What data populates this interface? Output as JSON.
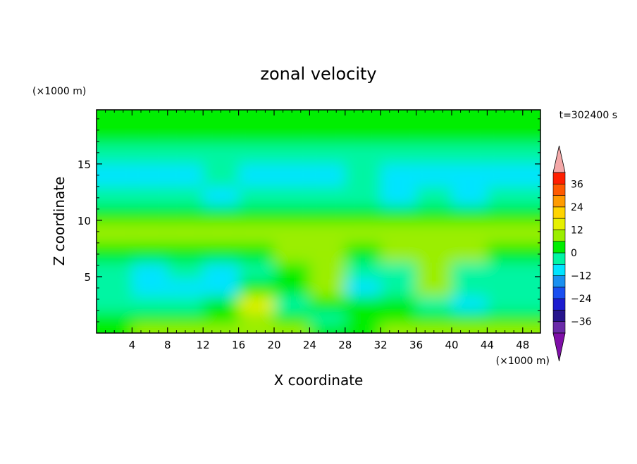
{
  "chart_data": {
    "type": "heatmap",
    "title": "zonal velocity",
    "xlabel": "X coordinate",
    "ylabel": "Z coordinate",
    "x_unit": "(×1000 m)",
    "y_unit": "(×1000 m)",
    "time_label": "t=302400 s",
    "xlim": [
      0,
      50
    ],
    "ylim": [
      0,
      19.8
    ],
    "x_ticks": [
      4,
      8,
      12,
      16,
      20,
      24,
      28,
      32,
      36,
      40,
      44,
      48
    ],
    "y_ticks": [
      5,
      10,
      15
    ],
    "colorbar": {
      "levels": [
        -42,
        -36,
        -30,
        -24,
        -18,
        -12,
        -6,
        0,
        6,
        12,
        18,
        24,
        30,
        36,
        42
      ],
      "tick_values": [
        -36,
        -24,
        -12,
        0,
        12,
        24,
        36
      ],
      "colors": [
        "#6a2aa8",
        "#26148c",
        "#1c1ccf",
        "#1a4ff0",
        "#1a90f0",
        "#00e4ff",
        "#00f5a3",
        "#00ee00",
        "#9bee00",
        "#e6f000",
        "#ffd400",
        "#ff9b00",
        "#ff5a00",
        "#ff1f00"
      ],
      "under_color": "#7f0fa8",
      "over_color": "#f4a8a8"
    },
    "field_description_rows": [
      {
        "z": 19.0,
        "values": [
          2,
          2,
          1,
          2,
          2,
          1,
          2,
          2,
          1,
          2,
          2,
          1
        ]
      },
      {
        "z": 17.5,
        "values": [
          4,
          4,
          5,
          3,
          2,
          4,
          5,
          5,
          4,
          3,
          4,
          4
        ]
      },
      {
        "z": 16.0,
        "values": [
          -2,
          -3,
          -2,
          -3,
          -4,
          -3,
          -2,
          -3,
          -4,
          -3,
          -3,
          -2
        ]
      },
      {
        "z": 14.0,
        "values": [
          -7,
          -8,
          -7,
          -6,
          -7,
          -8,
          -7,
          -6,
          -8,
          -9,
          -8,
          -7
        ]
      },
      {
        "z": 12.0,
        "values": [
          -5,
          -6,
          -6,
          -7,
          -6,
          -5,
          -6,
          -6,
          -7,
          -6,
          -7,
          -6
        ]
      },
      {
        "z": 10.5,
        "values": [
          3,
          2,
          3,
          4,
          3,
          3,
          4,
          3,
          3,
          4,
          3,
          3
        ]
      },
      {
        "z": 9.0,
        "values": [
          7,
          8,
          9,
          8,
          9,
          8,
          6,
          8,
          7,
          8,
          7,
          6
        ]
      },
      {
        "z": 7.0,
        "values": [
          2,
          1,
          0,
          1,
          5,
          8,
          7,
          2,
          6,
          9,
          6,
          2
        ]
      },
      {
        "z": 5.5,
        "values": [
          -5,
          -7,
          -6,
          -9,
          -3,
          4,
          10,
          -4,
          -5,
          11,
          -3,
          -4
        ]
      },
      {
        "z": 4.0,
        "values": [
          -4,
          -8,
          -9,
          -7,
          2,
          1,
          6,
          -7,
          -3,
          6,
          -4,
          -6
        ]
      },
      {
        "z": 2.5,
        "values": [
          -3,
          -5,
          -6,
          3,
          13,
          -2,
          2,
          1,
          1,
          -6,
          -9,
          -5
        ]
      },
      {
        "z": 1.2,
        "values": [
          2,
          1,
          2,
          3,
          6,
          1,
          -1,
          2,
          3,
          1,
          2,
          3
        ]
      },
      {
        "z": 0.3,
        "values": [
          5,
          8,
          6,
          8,
          7,
          6,
          3,
          5,
          8,
          6,
          7,
          6
        ]
      }
    ],
    "field_x_centers": [
      2,
      6,
      10,
      14,
      18,
      22,
      26,
      30,
      34,
      38,
      42,
      46
    ]
  }
}
